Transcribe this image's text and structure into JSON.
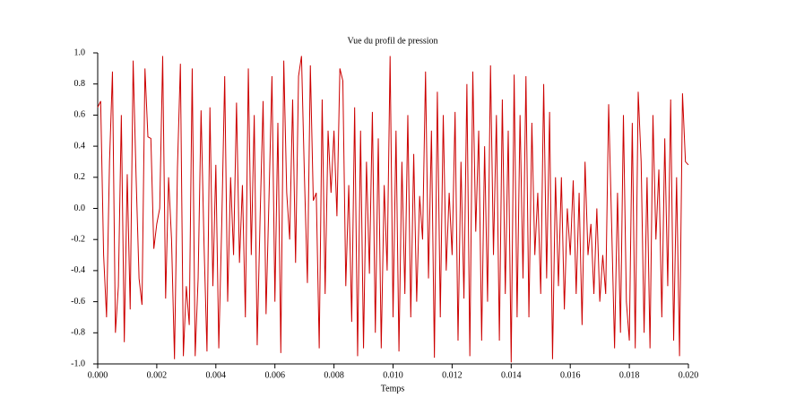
{
  "chart_data": {
    "type": "line",
    "title": "Vue du profil de pression",
    "xlabel": "Temps",
    "x": [
      0,
      0.0001,
      0.0002,
      0.0003,
      0.0004,
      0.0005,
      0.0006,
      0.0007,
      0.0008,
      0.0009,
      0.001,
      0.0011,
      0.0012,
      0.0013,
      0.0014,
      0.0015,
      0.0016,
      0.0017,
      0.0018,
      0.0019,
      0.002,
      0.0021,
      0.0022,
      0.0023,
      0.0024,
      0.0025,
      0.0026,
      0.0027,
      0.0028,
      0.0029,
      0.003,
      0.0031,
      0.0032,
      0.0033,
      0.0034,
      0.0035,
      0.0036,
      0.0037,
      0.0038,
      0.0039,
      0.004,
      0.0041,
      0.0042,
      0.0043,
      0.0044,
      0.0045,
      0.0046,
      0.0047,
      0.0048,
      0.0049,
      0.005,
      0.0051,
      0.0052,
      0.0053,
      0.0054,
      0.0055,
      0.0056,
      0.0057,
      0.0058,
      0.0059,
      0.006,
      0.0061,
      0.0062,
      0.0063,
      0.0064,
      0.0065,
      0.0066,
      0.0067,
      0.0068,
      0.0069,
      0.007,
      0.0071,
      0.0072,
      0.0073,
      0.0074,
      0.0075,
      0.0076,
      0.0077,
      0.0078,
      0.0079,
      0.008,
      0.0081,
      0.0082,
      0.0083,
      0.0084,
      0.0085,
      0.0086,
      0.0087,
      0.0088,
      0.0089,
      0.009,
      0.0091,
      0.0092,
      0.0093,
      0.0094,
      0.0095,
      0.0096,
      0.0097,
      0.0098,
      0.0099,
      0.01,
      0.0101,
      0.0102,
      0.0103,
      0.0104,
      0.0105,
      0.0106,
      0.0107,
      0.0108,
      0.0109,
      0.011,
      0.0111,
      0.0112,
      0.0113,
      0.0114,
      0.0115,
      0.0116,
      0.0117,
      0.0118,
      0.0119,
      0.012,
      0.0121,
      0.0122,
      0.0123,
      0.0124,
      0.0125,
      0.0126,
      0.0127,
      0.0128,
      0.0129,
      0.013,
      0.0131,
      0.0132,
      0.0133,
      0.0134,
      0.0135,
      0.0136,
      0.0137,
      0.0138,
      0.0139,
      0.014,
      0.0141,
      0.0142,
      0.0143,
      0.0144,
      0.0145,
      0.0146,
      0.0147,
      0.0148,
      0.0149,
      0.015,
      0.0151,
      0.0152,
      0.0153,
      0.0154,
      0.0155,
      0.0156,
      0.0157,
      0.0158,
      0.0159,
      0.016,
      0.0161,
      0.0162,
      0.0163,
      0.0164,
      0.0165,
      0.0166,
      0.0167,
      0.0168,
      0.0169,
      0.017,
      0.0171,
      0.0172,
      0.0173,
      0.0174,
      0.0175,
      0.0176,
      0.0177,
      0.0178,
      0.0179,
      0.018,
      0.0181,
      0.0182,
      0.0183,
      0.0184,
      0.0185,
      0.0186,
      0.0187,
      0.0188,
      0.0189,
      0.019,
      0.0191,
      0.0192,
      0.0193,
      0.0194,
      0.0195,
      0.0196,
      0.0197,
      0.0198,
      0.0199,
      0.02
    ],
    "series": [
      {
        "color": "#cc0000",
        "values": [
          0.65,
          0.69,
          -0.3,
          -0.7,
          0.3,
          0.88,
          -0.8,
          -0.5,
          0.6,
          -0.86,
          0.22,
          -0.65,
          0.95,
          0.2,
          -0.45,
          -0.62,
          0.9,
          0.46,
          0.45,
          -0.26,
          -0.1,
          0.0,
          0.98,
          -0.58,
          0.2,
          -0.2,
          -0.97,
          0.26,
          0.93,
          -0.95,
          -0.5,
          -0.75,
          0.9,
          -0.95,
          -0.45,
          0.63,
          -0.23,
          -0.92,
          0.65,
          -0.5,
          0.28,
          -0.9,
          -0.1,
          0.85,
          -0.6,
          0.2,
          -0.3,
          0.68,
          -0.35,
          0.15,
          -0.7,
          0.9,
          -0.3,
          0.6,
          -0.88,
          -0.05,
          0.69,
          -0.68,
          0.07,
          0.85,
          -0.6,
          0.55,
          -0.93,
          0.95,
          0.1,
          -0.2,
          0.7,
          -0.35,
          0.85,
          0.98,
          0.2,
          -0.48,
          0.92,
          0.05,
          0.1,
          -0.9,
          0.7,
          -0.55,
          0.5,
          0.1,
          0.5,
          -0.05,
          0.9,
          0.82,
          -0.5,
          0.15,
          -0.73,
          0.65,
          -0.95,
          0.5,
          -0.9,
          0.3,
          -0.42,
          0.62,
          -0.8,
          0.45,
          -0.9,
          0.15,
          -0.4,
          0.98,
          -0.7,
          0.5,
          -0.92,
          0.3,
          -0.55,
          0.6,
          -0.7,
          0.35,
          -0.6,
          0.08,
          -0.2,
          0.88,
          -0.45,
          0.5,
          -0.96,
          0.75,
          -0.7,
          0.6,
          -0.4,
          0.1,
          -0.3,
          0.62,
          -0.85,
          0.3,
          -0.58,
          0.8,
          -0.95,
          0.88,
          -0.15,
          0.5,
          -0.85,
          0.4,
          -0.6,
          0.92,
          -0.3,
          0.6,
          -0.85,
          0.7,
          -0.55,
          0.5,
          -0.99,
          0.86,
          -0.7,
          0.6,
          -0.45,
          0.85,
          -0.7,
          0.55,
          -0.3,
          0.1,
          -0.55,
          0.8,
          -0.45,
          0.62,
          -0.97,
          0.2,
          -0.5,
          0.2,
          -0.65,
          0.0,
          -0.3,
          0.18,
          -0.55,
          0.1,
          -0.75,
          0.3,
          -0.3,
          -0.1,
          -0.55,
          0.0,
          -0.6,
          -0.3,
          -0.55,
          0.67,
          -0.1,
          -0.9,
          0.1,
          -0.8,
          0.6,
          -0.6,
          -0.85,
          0.55,
          -0.9,
          0.75,
          0.3,
          -0.8,
          0.2,
          -0.9,
          0.6,
          -0.2,
          0.25,
          -0.7,
          0.45,
          -0.5,
          0.7,
          -0.85,
          0.2,
          -0.95,
          0.74,
          0.3,
          0.28
        ]
      }
    ],
    "xlim": [
      0,
      0.02
    ],
    "xticks": [
      {
        "value": 0,
        "label": "0.000"
      },
      {
        "value": 0.002,
        "label": "0.002"
      },
      {
        "value": 0.004,
        "label": "0.004"
      },
      {
        "value": 0.006,
        "label": "0.006"
      },
      {
        "value": 0.008,
        "label": "0.008"
      },
      {
        "value": 0.01,
        "label": "0.010"
      },
      {
        "value": 0.012,
        "label": "0.012"
      },
      {
        "value": 0.014,
        "label": "0.014"
      },
      {
        "value": 0.016,
        "label": "0.016"
      },
      {
        "value": 0.018,
        "label": "0.018"
      },
      {
        "value": 0.02,
        "label": "0.020"
      }
    ],
    "ylim": [
      -1,
      1
    ],
    "yticks": [
      {
        "value": -1,
        "label": "-1.0"
      },
      -0.8,
      -0.6,
      -0.4,
      -0.2,
      {
        "value": 0,
        "label": "0.0"
      },
      0.2,
      0.4,
      0.6,
      0.8,
      {
        "value": 1,
        "label": "1.0"
      }
    ],
    "grid": false
  }
}
